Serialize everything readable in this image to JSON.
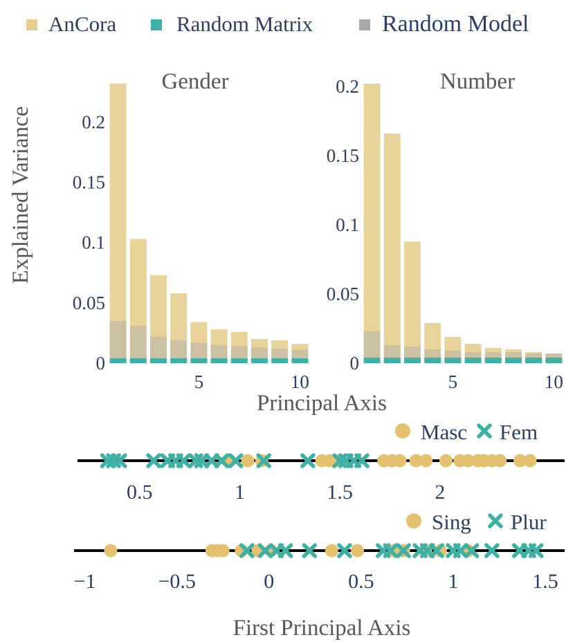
{
  "legend": [
    {
      "label": "AnCora",
      "color": "#e6cf92"
    },
    {
      "label": "Random Matrix",
      "color": "#3fb0a4"
    },
    {
      "label": "Random Model",
      "color": "#a8a8a8"
    }
  ],
  "ylabel": "Explained Variance",
  "xlabel_bars": "Principal Axis",
  "xlabel_strips": "First Principal Axis",
  "chart_data": [
    {
      "type": "bar",
      "title": "Gender",
      "x": [
        1,
        2,
        3,
        4,
        5,
        6,
        7,
        8,
        9,
        10
      ],
      "xticks": [
        5,
        10
      ],
      "yticks": [
        {
          "v": 0,
          "label": "0"
        },
        {
          "v": 0.05,
          "label": "0.05"
        },
        {
          "v": 0.1,
          "label": "0.1"
        },
        {
          "v": 0.15,
          "label": "0.15"
        },
        {
          "v": 0.2,
          "label": "0.2"
        }
      ],
      "ylim": [
        0,
        0.237
      ],
      "series": [
        {
          "name": "AnCora",
          "values": [
            0.232,
            0.103,
            0.073,
            0.058,
            0.034,
            0.028,
            0.026,
            0.02,
            0.019,
            0.016
          ]
        },
        {
          "name": "Random Matrix",
          "values": [
            0.004,
            0.004,
            0.004,
            0.004,
            0.004,
            0.004,
            0.004,
            0.004,
            0.004,
            0.004
          ]
        },
        {
          "name": "Random Model",
          "values": [
            0.035,
            0.031,
            0.022,
            0.019,
            0.017,
            0.015,
            0.014,
            0.013,
            0.012,
            0.011
          ]
        }
      ]
    },
    {
      "type": "bar",
      "title": "Number",
      "x": [
        1,
        2,
        3,
        4,
        5,
        6,
        7,
        8,
        9,
        10
      ],
      "xticks": [
        5,
        10
      ],
      "yticks": [
        {
          "v": 0,
          "label": "0"
        },
        {
          "v": 0.05,
          "label": "0.05"
        },
        {
          "v": 0.1,
          "label": "0.1"
        },
        {
          "v": 0.15,
          "label": "0.15"
        },
        {
          "v": 0.2,
          "label": "0.2"
        }
      ],
      "ylim": [
        0,
        0.205
      ],
      "series": [
        {
          "name": "AnCora",
          "values": [
            0.202,
            0.166,
            0.088,
            0.029,
            0.019,
            0.014,
            0.011,
            0.01,
            0.008,
            0.007
          ]
        },
        {
          "name": "Random Matrix",
          "values": [
            0.004,
            0.004,
            0.004,
            0.004,
            0.004,
            0.004,
            0.004,
            0.004,
            0.004,
            0.004
          ]
        },
        {
          "name": "Random Model",
          "values": [
            0.023,
            0.013,
            0.012,
            0.01,
            0.009,
            0.008,
            0.008,
            0.008,
            0.007,
            0.007
          ]
        }
      ]
    },
    {
      "type": "scatter",
      "legend": [
        {
          "label": "Masc",
          "marker": "circle",
          "color": "#e3c16f"
        },
        {
          "label": "Fem",
          "marker": "x",
          "color": "#3fb0a4"
        }
      ],
      "xlim": [
        0.2,
        2.55
      ],
      "xticks": [
        {
          "v": 0.5,
          "label": "0.5"
        },
        {
          "v": 1,
          "label": "1"
        },
        {
          "v": 1.5,
          "label": "1.5"
        },
        {
          "v": 2,
          "label": "2"
        }
      ],
      "series": [
        {
          "name": "Masc",
          "x": [
            0.95,
            1.04,
            1.11,
            1.41,
            1.45,
            1.5,
            1.72,
            1.76,
            1.8,
            1.88,
            1.93,
            2.03,
            2.1,
            2.14,
            2.19,
            2.22,
            2.26,
            2.3,
            2.4,
            2.45
          ]
        },
        {
          "name": "Fem",
          "x": [
            0.34,
            0.37,
            0.4,
            0.57,
            0.64,
            0.68,
            0.72,
            0.78,
            0.81,
            0.86,
            0.91,
            0.98,
            1.12,
            1.34,
            1.5,
            1.53,
            1.57,
            1.61
          ]
        }
      ]
    },
    {
      "type": "scatter",
      "legend": [
        {
          "label": "Sing",
          "marker": "circle",
          "color": "#e3c16f"
        },
        {
          "label": "Plur",
          "marker": "x",
          "color": "#3fb0a4"
        }
      ],
      "xlim": [
        -1.1,
        1.62
      ],
      "xticks": [
        {
          "v": -1,
          "label": "−1"
        },
        {
          "v": -0.5,
          "label": "−0.5"
        },
        {
          "v": 0,
          "label": "0"
        },
        {
          "v": 0.5,
          "label": "0.5"
        },
        {
          "v": 1,
          "label": "1"
        },
        {
          "v": 1.5,
          "label": "1.5"
        }
      ],
      "series": [
        {
          "name": "Sing",
          "x": [
            -0.86,
            -0.31,
            -0.28,
            -0.25,
            -0.15,
            -0.06,
            0.01,
            0.34,
            0.48,
            0.68,
            0.73,
            0.85,
            0.93,
            1.08
          ]
        },
        {
          "name": "Plur",
          "x": [
            -0.12,
            -0.02,
            0.04,
            0.09,
            0.22,
            0.41,
            0.62,
            0.66,
            0.73,
            0.82,
            0.86,
            0.91,
            1.0,
            1.04,
            1.1,
            1.21,
            1.36,
            1.41,
            1.45
          ]
        }
      ]
    }
  ]
}
